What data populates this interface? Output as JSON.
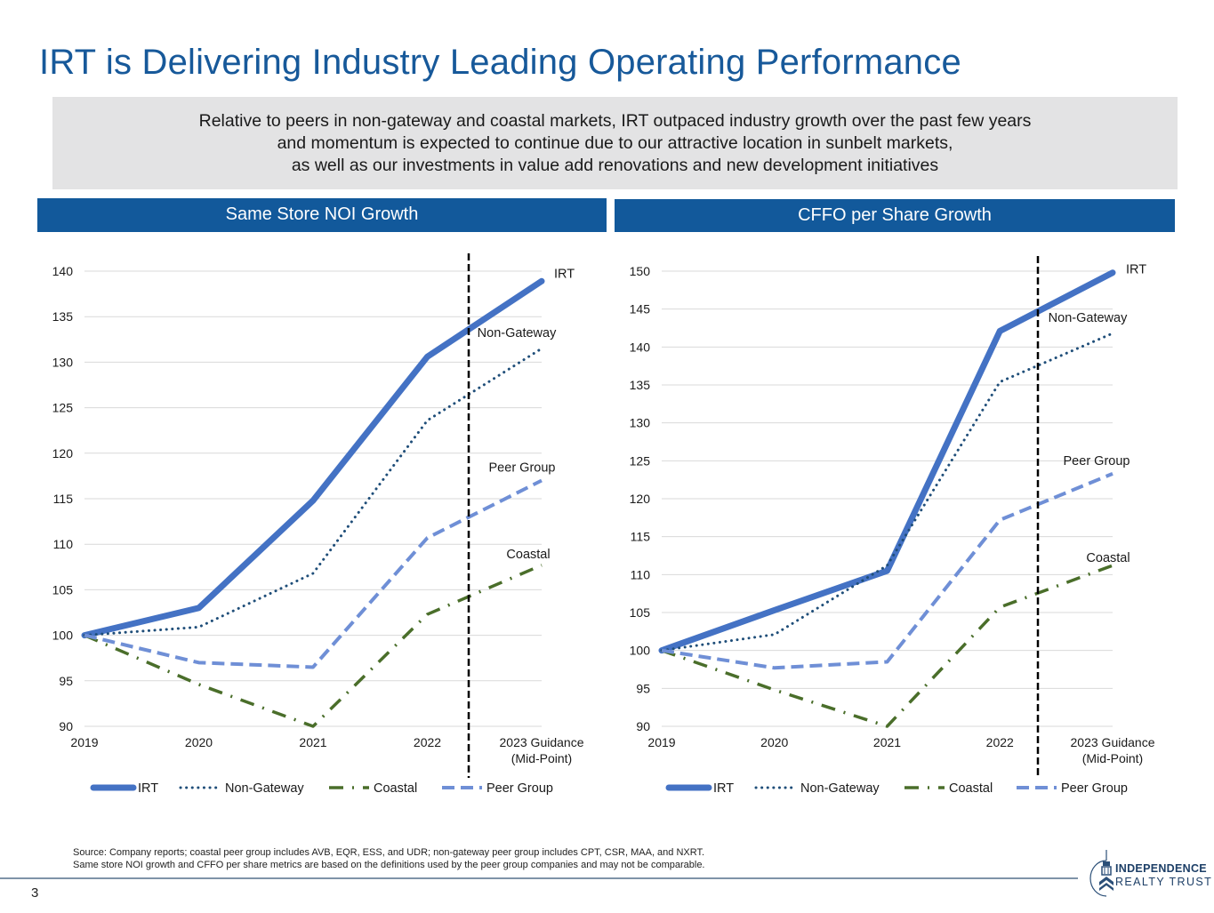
{
  "header": {
    "title": "IRT is Delivering Industry Leading Operating Performance"
  },
  "summary": {
    "lines": [
      "Relative to peers in non-gateway and coastal markets, IRT outpaced industry growth over the past few years",
      "and momentum is expected to continue due to our attractive location in sunbelt markets,",
      "as well as our investments in value add renovations and new development initiatives"
    ]
  },
  "panels": {
    "left_title": "Same Store NOI Growth",
    "right_title": "CFFO per Share Growth"
  },
  "colors": {
    "title": "#17599a",
    "panel_header": "#12599b",
    "irt": "#4472c4",
    "non_gateway": "#1f4e79",
    "coastal": "#4a6e2a",
    "peer_group": "#6f8fd6",
    "divider_line": "#000000"
  },
  "chart_data": [
    {
      "type": "line",
      "title": "Same Store NOI Growth",
      "categories": [
        "2019",
        "2020",
        "2021",
        "2022",
        "2023 Guidance\n(Mid-Point)"
      ],
      "category_labels": [
        [
          "2019"
        ],
        [
          "2020"
        ],
        [
          "2021"
        ],
        [
          "2022"
        ],
        [
          "2023 Guidance",
          "(Mid-Point)"
        ]
      ],
      "ylim": [
        90,
        140
      ],
      "yticks": [
        90,
        95,
        100,
        105,
        110,
        115,
        120,
        125,
        130,
        135,
        140
      ],
      "grid": true,
      "forecast_divider_between": [
        "2022",
        "2023 Guidance (Mid-Point)"
      ],
      "legend": "bottom",
      "series": [
        {
          "name": "IRT",
          "style": "solid-thick",
          "values": [
            100,
            103.0,
            114.8,
            130.6,
            138.9
          ]
        },
        {
          "name": "Non-Gateway",
          "style": "dotted",
          "values": [
            100,
            100.9,
            106.8,
            123.6,
            131.5
          ]
        },
        {
          "name": "Coastal",
          "style": "dash-dot",
          "values": [
            100,
            94.6,
            90.0,
            102.3,
            107.7
          ]
        },
        {
          "name": "Peer Group",
          "style": "dashed",
          "values": [
            100,
            97.0,
            96.5,
            110.7,
            117.0
          ]
        }
      ]
    },
    {
      "type": "line",
      "title": "CFFO per Share Growth",
      "categories": [
        "2019",
        "2020",
        "2021",
        "2022",
        "2023 Guidance\n(Mid-Point)"
      ],
      "category_labels": [
        [
          "2019"
        ],
        [
          "2020"
        ],
        [
          "2021"
        ],
        [
          "2022"
        ],
        [
          "2023 Guidance",
          "(Mid-Point)"
        ]
      ],
      "ylim": [
        90,
        150
      ],
      "yticks": [
        90,
        95,
        100,
        105,
        110,
        115,
        120,
        125,
        130,
        135,
        140,
        145,
        150
      ],
      "grid": true,
      "forecast_divider_between": [
        "2022",
        "2023 Guidance (Mid-Point)"
      ],
      "legend": "bottom",
      "series": [
        {
          "name": "IRT",
          "style": "solid-thick",
          "values": [
            100,
            105.3,
            110.5,
            142.1,
            149.8
          ]
        },
        {
          "name": "Non-Gateway",
          "style": "dotted",
          "values": [
            100,
            102.1,
            111.2,
            135.4,
            141.8
          ]
        },
        {
          "name": "Coastal",
          "style": "dash-dot",
          "values": [
            100,
            94.8,
            90.0,
            105.7,
            111.2
          ]
        },
        {
          "name": "Peer Group",
          "style": "dashed",
          "values": [
            100,
            97.7,
            98.5,
            117.2,
            123.3
          ]
        }
      ]
    }
  ],
  "footnote": {
    "lines": [
      "Source: Company reports; coastal peer group includes AVB, EQR, ESS, and UDR; non-gateway peer group includes CPT, CSR, MAA, and NXRT.",
      "Same store NOI growth and CFFO per share metrics are based on the definitions used by the peer group companies and may not be comparable."
    ]
  },
  "page_number": "3",
  "logo": {
    "line1": "INDEPENDENCE",
    "line2": "REALTY TRUST"
  }
}
